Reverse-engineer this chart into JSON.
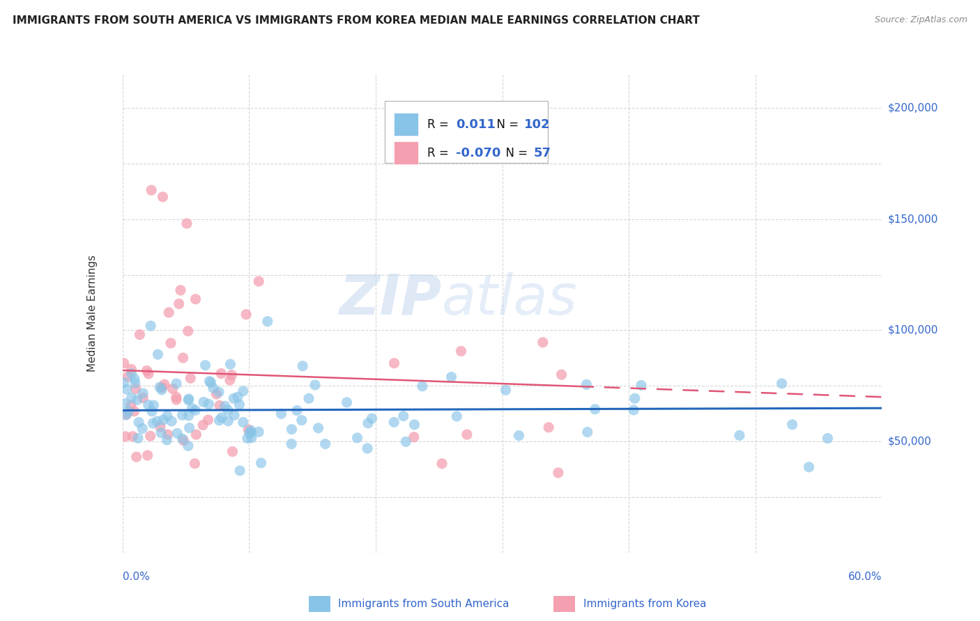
{
  "title": "IMMIGRANTS FROM SOUTH AMERICA VS IMMIGRANTS FROM KOREA MEDIAN MALE EARNINGS CORRELATION CHART",
  "source": "Source: ZipAtlas.com",
  "ylabel": "Median Male Earnings",
  "xlim": [
    0.0,
    0.6
  ],
  "ylim": [
    0,
    215000
  ],
  "blue_R": 0.011,
  "blue_N": 102,
  "pink_R": -0.07,
  "pink_N": 57,
  "blue_color": "#88c4e8",
  "pink_color": "#f4a0b0",
  "blue_line_color": "#2266bb",
  "pink_line_color": "#e05575",
  "legend_label_blue": "Immigrants from South America",
  "legend_label_pink": "Immigrants from Korea",
  "title_fontsize": 11,
  "axis_label_color": "#3366cc",
  "grid_color": "#cccccc",
  "background_color": "#ffffff",
  "blue_trend_y0": 64000,
  "blue_trend_y1": 65000,
  "pink_trend_y0": 82000,
  "pink_trend_y1": 70000
}
